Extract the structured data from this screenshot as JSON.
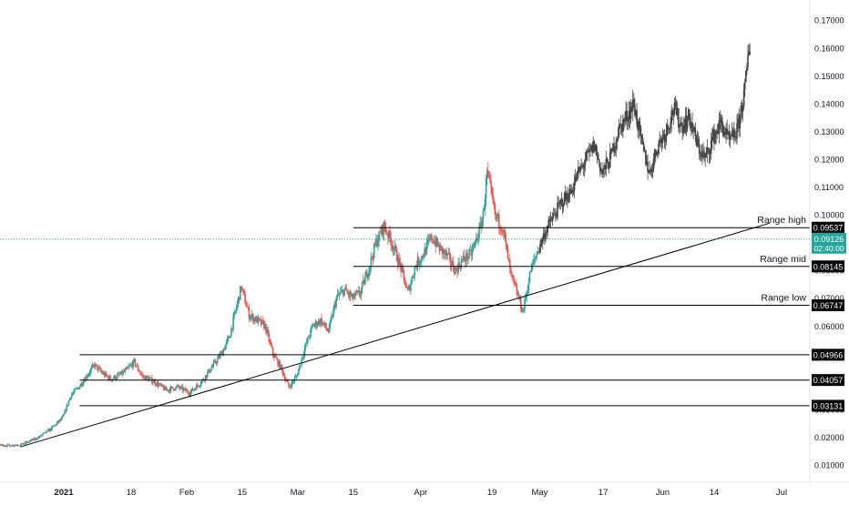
{
  "chart_data": {
    "type": "candlestick",
    "title": "",
    "xlabel": "",
    "ylabel": "",
    "ylim": [
      0.0,
      0.175
    ],
    "x_range": [
      "2020-12-01",
      "2021-07-12"
    ],
    "y_ticks": [
      "0.01000",
      "0.02000",
      "0.03000",
      "0.04000",
      "0.05000",
      "0.06000",
      "0.07000",
      "0.08000",
      "0.09000",
      "0.10000",
      "0.11000",
      "0.12000",
      "0.13000",
      "0.14000",
      "0.15000",
      "0.16000",
      "0.17000"
    ],
    "x_ticks": [
      {
        "date": "2021-01-01",
        "label": "2021",
        "bold": true
      },
      {
        "date": "2021-01-18",
        "label": "18"
      },
      {
        "date": "2021-02-01",
        "label": "Feb"
      },
      {
        "date": "2021-02-15",
        "label": "15"
      },
      {
        "date": "2021-03-01",
        "label": "Mar"
      },
      {
        "date": "2021-03-15",
        "label": "15"
      },
      {
        "date": "2021-04-01",
        "label": "Apr"
      },
      {
        "date": "2021-04-19",
        "label": "19"
      },
      {
        "date": "2021-05-01",
        "label": "May"
      },
      {
        "date": "2021-05-17",
        "label": "17"
      },
      {
        "date": "2021-06-01",
        "label": "Jun"
      },
      {
        "date": "2021-06-14",
        "label": "14"
      },
      {
        "date": "2021-07-01",
        "label": "Jul"
      }
    ],
    "series_path": [
      [
        "2020-12-01",
        0.018
      ],
      [
        "2020-12-05",
        0.019
      ],
      [
        "2020-12-10",
        0.019
      ],
      [
        "2020-12-14",
        0.0175
      ],
      [
        "2020-12-18",
        0.017
      ],
      [
        "2020-12-22",
        0.0175
      ],
      [
        "2020-12-26",
        0.02
      ],
      [
        "2020-12-29",
        0.023
      ],
      [
        "2021-01-01",
        0.027
      ],
      [
        "2021-01-03",
        0.035
      ],
      [
        "2021-01-05",
        0.038
      ],
      [
        "2021-01-07",
        0.042
      ],
      [
        "2021-01-09",
        0.046
      ],
      [
        "2021-01-11",
        0.043
      ],
      [
        "2021-01-13",
        0.041
      ],
      [
        "2021-01-15",
        0.042
      ],
      [
        "2021-01-17",
        0.044
      ],
      [
        "2021-01-19",
        0.047
      ],
      [
        "2021-01-21",
        0.042
      ],
      [
        "2021-01-24",
        0.04
      ],
      [
        "2021-01-27",
        0.037
      ],
      [
        "2021-01-30",
        0.038
      ],
      [
        "2021-02-02",
        0.036
      ],
      [
        "2021-02-05",
        0.04
      ],
      [
        "2021-02-08",
        0.046
      ],
      [
        "2021-02-10",
        0.05
      ],
      [
        "2021-02-12",
        0.056
      ],
      [
        "2021-02-14",
        0.068
      ],
      [
        "2021-02-15",
        0.074
      ],
      [
        "2021-02-17",
        0.064
      ],
      [
        "2021-02-19",
        0.062
      ],
      [
        "2021-02-21",
        0.06
      ],
      [
        "2021-02-23",
        0.05
      ],
      [
        "2021-02-25",
        0.045
      ],
      [
        "2021-02-27",
        0.038
      ],
      [
        "2021-03-01",
        0.042
      ],
      [
        "2021-03-03",
        0.052
      ],
      [
        "2021-03-05",
        0.06
      ],
      [
        "2021-03-07",
        0.062
      ],
      [
        "2021-03-09",
        0.058
      ],
      [
        "2021-03-11",
        0.07
      ],
      [
        "2021-03-13",
        0.073
      ],
      [
        "2021-03-15",
        0.07
      ],
      [
        "2021-03-17",
        0.072
      ],
      [
        "2021-03-19",
        0.08
      ],
      [
        "2021-03-21",
        0.09
      ],
      [
        "2021-03-23",
        0.096
      ],
      [
        "2021-03-25",
        0.09
      ],
      [
        "2021-03-27",
        0.082
      ],
      [
        "2021-03-29",
        0.072
      ],
      [
        "2021-03-31",
        0.082
      ],
      [
        "2021-04-02",
        0.086
      ],
      [
        "2021-04-04",
        0.092
      ],
      [
        "2021-04-06",
        0.088
      ],
      [
        "2021-04-08",
        0.085
      ],
      [
        "2021-04-10",
        0.08
      ],
      [
        "2021-04-12",
        0.084
      ],
      [
        "2021-04-14",
        0.086
      ],
      [
        "2021-04-16",
        0.094
      ],
      [
        "2021-04-17",
        0.1
      ],
      [
        "2021-04-18",
        0.115
      ],
      [
        "2021-04-20",
        0.1
      ],
      [
        "2021-04-22",
        0.095
      ],
      [
        "2021-04-24",
        0.078
      ],
      [
        "2021-04-26",
        0.07
      ],
      [
        "2021-04-27",
        0.065
      ],
      [
        "2021-04-29",
        0.08
      ],
      [
        "2021-05-01",
        0.088
      ],
      [
        "2021-05-03",
        0.095
      ],
      [
        "2021-05-05",
        0.1
      ],
      [
        "2021-05-07",
        0.105
      ],
      [
        "2021-05-09",
        0.108
      ],
      [
        "2021-05-11",
        0.115
      ],
      [
        "2021-05-13",
        0.12
      ],
      [
        "2021-05-15",
        0.125
      ],
      [
        "2021-05-17",
        0.115
      ],
      [
        "2021-05-19",
        0.12
      ],
      [
        "2021-05-21",
        0.13
      ],
      [
        "2021-05-23",
        0.135
      ],
      [
        "2021-05-25",
        0.14
      ],
      [
        "2021-05-27",
        0.125
      ],
      [
        "2021-05-29",
        0.115
      ],
      [
        "2021-05-31",
        0.125
      ],
      [
        "2021-06-02",
        0.13
      ],
      [
        "2021-06-04",
        0.138
      ],
      [
        "2021-06-06",
        0.132
      ],
      [
        "2021-06-08",
        0.135
      ],
      [
        "2021-06-10",
        0.125
      ],
      [
        "2021-06-12",
        0.12
      ],
      [
        "2021-06-14",
        0.128
      ],
      [
        "2021-06-16",
        0.133
      ],
      [
        "2021-06-18",
        0.126
      ],
      [
        "2021-06-20",
        0.13
      ],
      [
        "2021-06-22",
        0.145
      ],
      [
        "2021-06-23",
        0.16
      ]
    ],
    "levels": [
      {
        "price": 0.09537,
        "label": "0.09537",
        "text": "Range high",
        "from": "2021-03-15"
      },
      {
        "price": 0.08145,
        "label": "0.08145",
        "text": "Range mid",
        "from": "2021-03-15"
      },
      {
        "price": 0.06747,
        "label": "0.06747",
        "text": "Range low",
        "from": "2021-03-15"
      },
      {
        "price": 0.04966,
        "label": "0.04966",
        "text": "",
        "from": "2021-01-05"
      },
      {
        "price": 0.04057,
        "label": "0.04057",
        "text": "",
        "from": "2021-01-05"
      },
      {
        "price": 0.03131,
        "label": "0.03131",
        "text": "",
        "from": "2021-01-05"
      }
    ],
    "trendline": [
      [
        "2020-12-21",
        0.0165
      ],
      [
        "2021-06-28",
        0.097
      ]
    ],
    "current_price": {
      "price": 0.09126,
      "label": "0.09126",
      "countdown": "02:40:00",
      "color": "#26a69a"
    },
    "colors": {
      "up": "#26a69a",
      "down": "#ef5350",
      "recent": "#444444",
      "line": "#000000",
      "label_bg": "#000000"
    }
  }
}
